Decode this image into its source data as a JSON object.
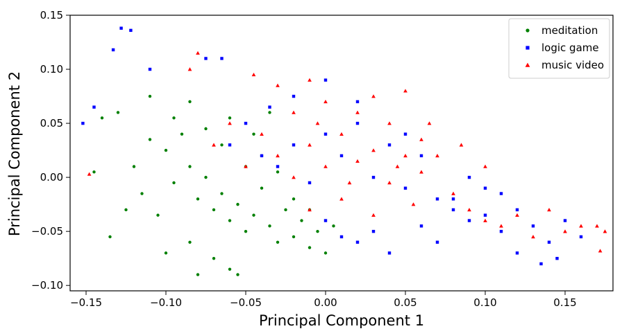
{
  "chart_data": {
    "type": "scatter",
    "title": "",
    "xlabel": "Principal Component 1",
    "ylabel": "Principal Component 2",
    "xlim": [
      -0.16,
      0.18
    ],
    "ylim": [
      -0.105,
      0.15
    ],
    "x_ticks": [
      -0.15,
      -0.1,
      -0.05,
      0.0,
      0.05,
      0.1,
      0.15
    ],
    "x_tick_labels": [
      "−0.15",
      "−0.10",
      "−0.05",
      "0.00",
      "0.05",
      "0.10",
      "0.15"
    ],
    "y_ticks": [
      -0.1,
      -0.05,
      0.0,
      0.05,
      0.1,
      0.15
    ],
    "y_tick_labels": [
      "−0.10",
      "−0.05",
      "0.00",
      "0.05",
      "0.10",
      "0.15"
    ],
    "grid": false,
    "legend_position": "top-right",
    "series": [
      {
        "name": "meditation",
        "color": "#008000",
        "marker": "circle",
        "points": [
          [
            -0.095,
            -0.005
          ],
          [
            -0.085,
            0.01
          ],
          [
            -0.08,
            -0.02
          ],
          [
            -0.075,
            0.0
          ],
          [
            -0.07,
            -0.03
          ],
          [
            -0.065,
            -0.015
          ],
          [
            -0.06,
            -0.04
          ],
          [
            -0.055,
            -0.025
          ],
          [
            -0.05,
            -0.05
          ],
          [
            -0.045,
            -0.035
          ],
          [
            -0.04,
            -0.01
          ],
          [
            -0.035,
            -0.045
          ],
          [
            -0.03,
            -0.06
          ],
          [
            -0.025,
            -0.03
          ],
          [
            -0.02,
            -0.055
          ],
          [
            -0.015,
            -0.04
          ],
          [
            -0.01,
            -0.065
          ],
          [
            -0.005,
            -0.05
          ],
          [
            0.0,
            -0.07
          ],
          [
            -0.1,
            0.025
          ],
          [
            -0.11,
            0.035
          ],
          [
            -0.115,
            -0.015
          ],
          [
            -0.12,
            0.01
          ],
          [
            -0.09,
            0.04
          ],
          [
            -0.105,
            -0.035
          ],
          [
            -0.085,
            -0.06
          ],
          [
            -0.07,
            -0.075
          ],
          [
            -0.06,
            -0.085
          ],
          [
            -0.075,
            0.045
          ],
          [
            -0.065,
            0.03
          ],
          [
            -0.13,
            0.06
          ],
          [
            -0.14,
            0.055
          ],
          [
            -0.11,
            0.075
          ],
          [
            -0.095,
            0.055
          ],
          [
            -0.05,
            0.01
          ],
          [
            -0.04,
            0.02
          ],
          [
            -0.03,
            0.005
          ],
          [
            -0.02,
            -0.02
          ],
          [
            -0.01,
            -0.03
          ],
          [
            0.005,
            -0.045
          ],
          [
            -0.125,
            -0.03
          ],
          [
            -0.135,
            -0.055
          ],
          [
            -0.145,
            0.005
          ],
          [
            -0.1,
            -0.07
          ],
          [
            -0.08,
            -0.09
          ],
          [
            -0.055,
            -0.09
          ],
          [
            -0.045,
            0.04
          ],
          [
            -0.035,
            0.06
          ],
          [
            -0.06,
            0.055
          ],
          [
            -0.085,
            0.07
          ]
        ]
      },
      {
        "name": "logic game",
        "color": "#0000ff",
        "marker": "square",
        "points": [
          [
            -0.04,
            0.02
          ],
          [
            -0.03,
            0.01
          ],
          [
            -0.02,
            0.03
          ],
          [
            -0.01,
            -0.005
          ],
          [
            0.0,
            0.04
          ],
          [
            0.01,
            0.02
          ],
          [
            0.02,
            0.05
          ],
          [
            0.03,
            0.0
          ],
          [
            0.04,
            0.03
          ],
          [
            0.05,
            -0.01
          ],
          [
            0.06,
            0.02
          ],
          [
            0.07,
            -0.02
          ],
          [
            0.08,
            -0.03
          ],
          [
            0.09,
            -0.04
          ],
          [
            0.1,
            -0.035
          ],
          [
            0.11,
            -0.05
          ],
          [
            0.12,
            -0.03
          ],
          [
            0.13,
            -0.045
          ],
          [
            0.14,
            -0.06
          ],
          [
            0.15,
            -0.04
          ],
          [
            0.0,
            -0.04
          ],
          [
            0.01,
            -0.055
          ],
          [
            0.02,
            -0.06
          ],
          [
            0.03,
            -0.05
          ],
          [
            0.04,
            -0.07
          ],
          [
            0.06,
            -0.045
          ],
          [
            0.07,
            -0.06
          ],
          [
            0.08,
            -0.02
          ],
          [
            0.1,
            -0.01
          ],
          [
            0.12,
            -0.07
          ],
          [
            -0.06,
            0.03
          ],
          [
            -0.05,
            0.05
          ],
          [
            -0.035,
            0.065
          ],
          [
            -0.02,
            0.075
          ],
          [
            0.0,
            0.09
          ],
          [
            -0.075,
            0.11
          ],
          [
            -0.065,
            0.11
          ],
          [
            -0.128,
            0.138
          ],
          [
            -0.122,
            0.136
          ],
          [
            -0.133,
            0.118
          ],
          [
            -0.145,
            0.065
          ],
          [
            -0.152,
            0.05
          ],
          [
            -0.11,
            0.1
          ],
          [
            0.02,
            0.07
          ],
          [
            0.05,
            0.04
          ],
          [
            0.09,
            0.0
          ],
          [
            0.11,
            -0.015
          ],
          [
            0.16,
            -0.055
          ],
          [
            0.135,
            -0.08
          ],
          [
            0.145,
            -0.075
          ]
        ]
      },
      {
        "name": "music video",
        "color": "#ff0000",
        "marker": "triangle",
        "points": [
          [
            -0.03,
            0.02
          ],
          [
            -0.02,
            0.0
          ],
          [
            -0.01,
            0.03
          ],
          [
            0.0,
            0.01
          ],
          [
            0.01,
            0.04
          ],
          [
            0.02,
            0.015
          ],
          [
            0.03,
            0.025
          ],
          [
            0.04,
            -0.005
          ],
          [
            0.05,
            0.02
          ],
          [
            0.06,
            0.005
          ],
          [
            -0.04,
            0.04
          ],
          [
            -0.05,
            0.01
          ],
          [
            -0.06,
            0.05
          ],
          [
            -0.07,
            0.03
          ],
          [
            -0.02,
            0.06
          ],
          [
            0.0,
            0.07
          ],
          [
            0.02,
            0.06
          ],
          [
            0.04,
            0.05
          ],
          [
            0.06,
            0.035
          ],
          [
            0.07,
            0.02
          ],
          [
            0.08,
            -0.015
          ],
          [
            0.09,
            -0.03
          ],
          [
            0.1,
            -0.04
          ],
          [
            0.11,
            -0.045
          ],
          [
            0.12,
            -0.035
          ],
          [
            0.13,
            -0.055
          ],
          [
            0.14,
            -0.03
          ],
          [
            0.15,
            -0.05
          ],
          [
            0.16,
            -0.045
          ],
          [
            0.17,
            -0.045
          ],
          [
            0.175,
            -0.05
          ],
          [
            0.172,
            -0.068
          ],
          [
            -0.01,
            -0.03
          ],
          [
            0.01,
            -0.02
          ],
          [
            0.03,
            -0.035
          ],
          [
            -0.045,
            0.095
          ],
          [
            -0.03,
            0.085
          ],
          [
            -0.01,
            0.09
          ],
          [
            -0.08,
            0.115
          ],
          [
            -0.085,
            0.1
          ],
          [
            -0.148,
            0.003
          ],
          [
            0.05,
            0.08
          ],
          [
            0.065,
            0.05
          ],
          [
            0.085,
            0.03
          ],
          [
            0.1,
            0.01
          ],
          [
            0.03,
            0.075
          ],
          [
            -0.005,
            0.05
          ],
          [
            0.015,
            -0.005
          ],
          [
            0.045,
            0.01
          ],
          [
            0.055,
            -0.025
          ]
        ]
      }
    ]
  }
}
